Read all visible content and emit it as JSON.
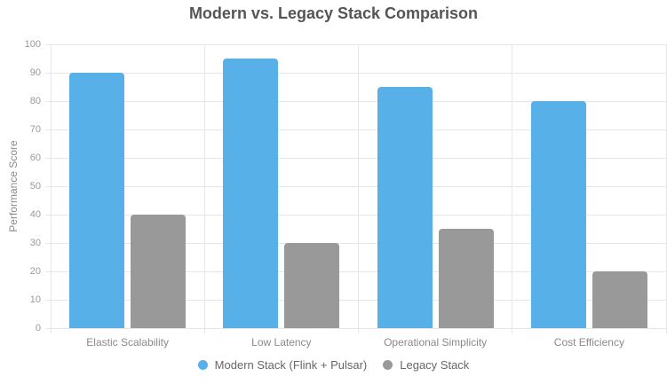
{
  "chart_data": {
    "type": "bar",
    "title": "Modern vs. Legacy Stack Comparison",
    "ylabel": "Performance Score",
    "xlabel": "",
    "categories": [
      "Elastic Scalability",
      "Low Latency",
      "Operational Simplicity",
      "Cost Efficiency"
    ],
    "series": [
      {
        "name": "Modern Stack (Flink + Pulsar)",
        "color": "#57b0e8",
        "values": [
          90,
          95,
          85,
          80
        ]
      },
      {
        "name": "Legacy Stack",
        "color": "#999999",
        "values": [
          40,
          30,
          35,
          20
        ]
      }
    ],
    "ylim": [
      0,
      100
    ],
    "ytick_step": 10,
    "grid": true,
    "legend_position": "bottom"
  },
  "colors": {
    "background": "#ffffff",
    "grid": "#e7e7e7",
    "title_text": "#555555",
    "tick_text": "#999999",
    "category_text": "#8a8a8a",
    "legend_text": "#666666"
  }
}
